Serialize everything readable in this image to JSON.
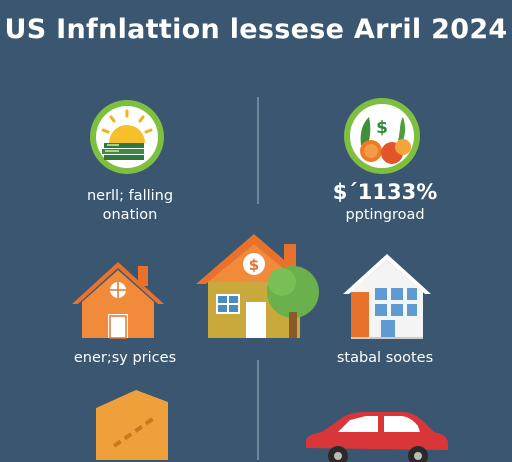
{
  "title": "US Infnlattion lessese Arril 2024",
  "items": [
    {
      "line1": "nerll; falling",
      "line2": "onation",
      "icon": "sun-money-icon"
    },
    {
      "big": "$´1133%",
      "line2": "pptingroad",
      "icon": "vegetables-icon"
    },
    {
      "label": "ener;sy prices",
      "icon": "house-icon"
    },
    {
      "label": "stabal sootes",
      "icon": "building-icon"
    }
  ],
  "center_icon": "house-dollar-icon",
  "bottom_icons": [
    "box-icon",
    "car-icon"
  ],
  "colors": {
    "background": "#3b5670",
    "green": "#7fbf3f",
    "orange": "#e8722b",
    "red": "#d9363a",
    "white": "#ffffff"
  }
}
